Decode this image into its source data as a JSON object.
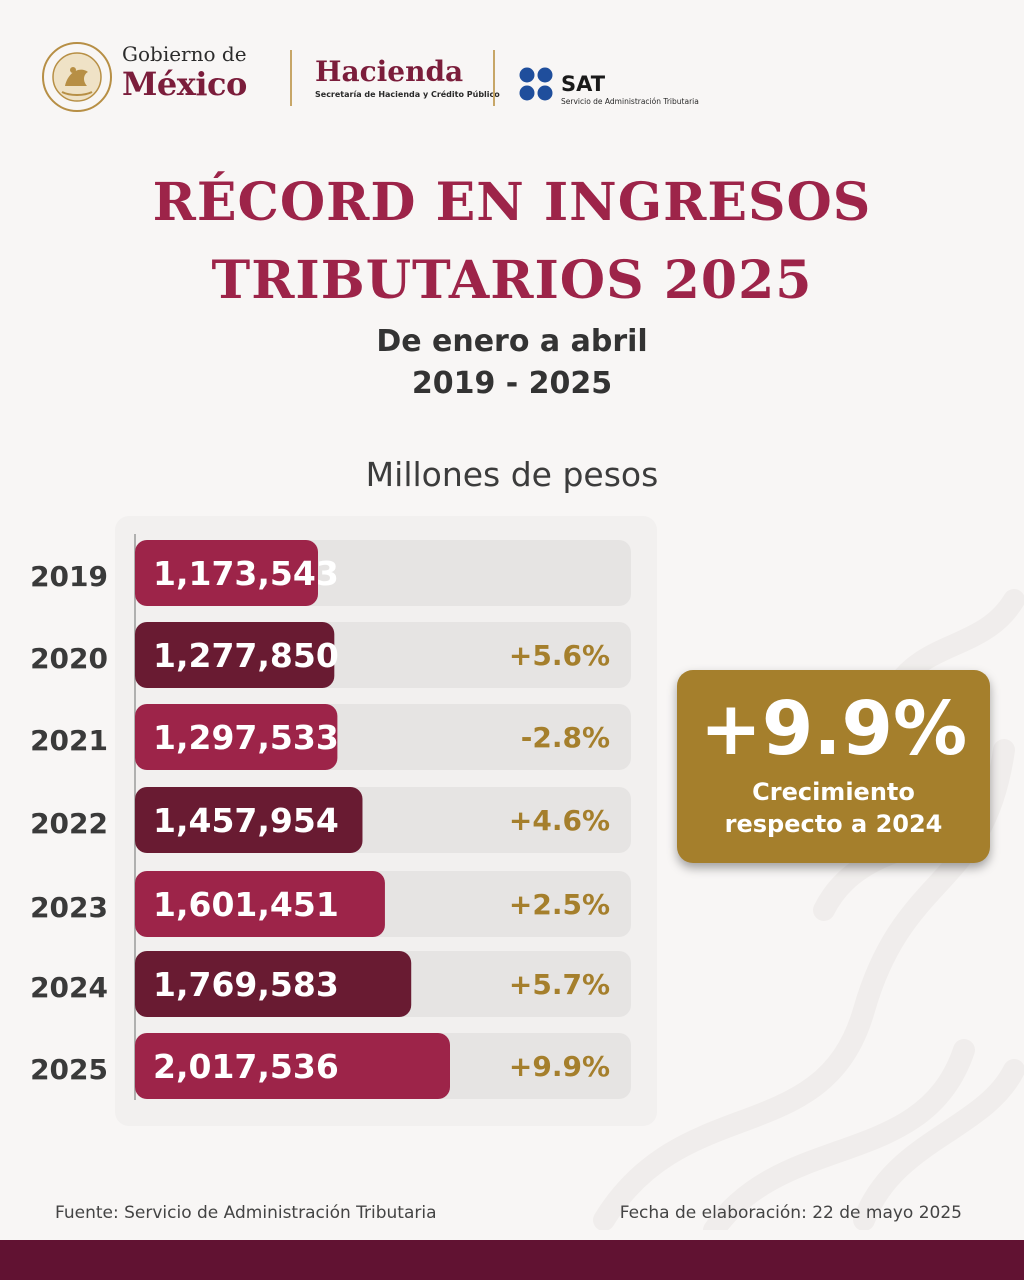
{
  "header": {
    "gobierno_line1": "Gobierno de",
    "gobierno_line2": "México",
    "seal_text": "ESTADOS UNIDOS MEXICANOS",
    "hacienda_name": "Hacienda",
    "hacienda_sub": "Secretaría de Hacienda y Crédito Público",
    "sat_name": "SAT",
    "sat_sub": "Servicio de Administración Tributaria"
  },
  "title_line1": "RÉCORD EN INGRESOS",
  "title_line2": "TRIBUTARIOS 2025",
  "subtitle_line1": "De enero a abril",
  "subtitle_line2": "2019 - 2025",
  "units_label": "Millones de pesos",
  "callout": {
    "value": "+9.9%",
    "line1": "Crecimiento",
    "line2": "respecto a 2024"
  },
  "colors": {
    "primary": "#9d2449",
    "dark": "#691b32",
    "gold": "#a57f2c",
    "track": "#e6e4e3",
    "band": "#611232"
  },
  "chart_data": {
    "type": "bar",
    "orientation": "horizontal",
    "categories": [
      "2019",
      "2020",
      "2021",
      "2022",
      "2023",
      "2024",
      "2025"
    ],
    "values": [
      1173543,
      1277850,
      1297533,
      1457954,
      1601451,
      1769583,
      2017536
    ],
    "value_labels": [
      "1,173,543",
      "1,277,850",
      "1,297,533",
      "1,457,954",
      "1,601,451",
      "1,769,583",
      "2,017,536"
    ],
    "change_labels": [
      "",
      "+5.6%",
      "-2.8%",
      "+4.6%",
      "+2.5%",
      "+5.7%",
      "+9.9%"
    ],
    "bar_colors": [
      "#9d2449",
      "#691b32",
      "#9d2449",
      "#691b32",
      "#9d2449",
      "#691b32",
      "#9d2449"
    ],
    "unit": "Millones de pesos",
    "grid": false
  },
  "footer": {
    "source": "Fuente: Servicio de Administración Tributaria",
    "date": "Fecha de elaboración: 22 de mayo 2025"
  }
}
